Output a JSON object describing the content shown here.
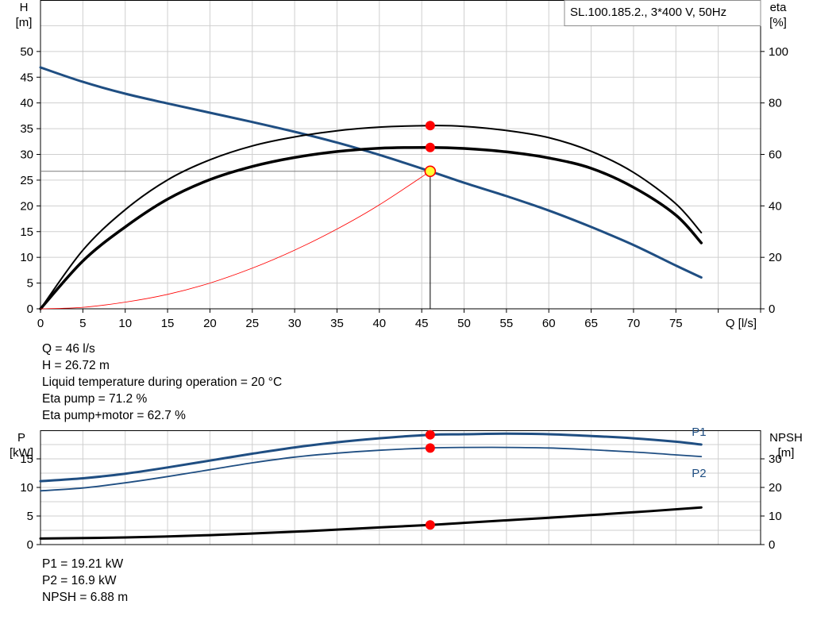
{
  "pump_label": "SL.100.185.2., 3*400 V, 50Hz",
  "chart_data": [
    {
      "type": "line",
      "title": "",
      "xlabel": "Q [l/s]",
      "ylabel": "H\n[m]",
      "y2label": "eta\n[%]",
      "xlim": [
        0,
        85
      ],
      "ylim": [
        0,
        60
      ],
      "y2lim": [
        0,
        120
      ],
      "x_ticks": [
        0,
        5,
        10,
        15,
        20,
        25,
        30,
        35,
        40,
        45,
        50,
        55,
        60,
        65,
        70,
        75
      ],
      "y_ticks": [
        0,
        5,
        10,
        15,
        20,
        25,
        30,
        35,
        40,
        45,
        50
      ],
      "y2_ticks": [
        0,
        20,
        40,
        60,
        80,
        100
      ],
      "grid": true,
      "series": [
        {
          "key": "head",
          "axis": "left",
          "color": "#1f4e82",
          "width": 3,
          "x": [
            0,
            5,
            10,
            15,
            20,
            25,
            30,
            35,
            40,
            46,
            50,
            55,
            60,
            65,
            70,
            75,
            78
          ],
          "y": [
            46.9,
            44.1,
            41.8,
            39.9,
            38.1,
            36.3,
            34.4,
            32.3,
            29.9,
            26.72,
            24.5,
            21.9,
            19.1,
            15.9,
            12.4,
            8.4,
            6.1
          ]
        },
        {
          "key": "eta_pump",
          "axis": "right",
          "color": "#000000",
          "width": 2,
          "x": [
            0,
            5,
            10,
            15,
            20,
            25,
            30,
            35,
            40,
            46,
            50,
            55,
            60,
            65,
            70,
            75,
            78
          ],
          "y": [
            0,
            22.8,
            38.5,
            50.1,
            57.9,
            63.3,
            66.8,
            69.2,
            70.6,
            71.2,
            70.9,
            69.3,
            66.5,
            61.2,
            53.0,
            40.8,
            29.6
          ]
        },
        {
          "key": "eta_total",
          "axis": "right",
          "color": "#000000",
          "width": 3.5,
          "x": [
            0,
            5,
            10,
            15,
            20,
            25,
            30,
            35,
            40,
            46,
            50,
            55,
            60,
            65,
            70,
            75,
            78
          ],
          "y": [
            0,
            18.6,
            31.8,
            42.6,
            50.2,
            55.3,
            58.8,
            61.1,
            62.4,
            62.7,
            62.3,
            61.0,
            58.6,
            54.6,
            47.2,
            36.4,
            25.6
          ]
        },
        {
          "key": "system",
          "axis": "left",
          "color": "#ff0000",
          "width": 0.8,
          "x": [
            0,
            5,
            10,
            15,
            20,
            25,
            30,
            35,
            40,
            46
          ],
          "y": [
            0,
            0.3,
            1.3,
            2.8,
            5.0,
            7.9,
            11.4,
            15.5,
            20.2,
            26.72
          ]
        }
      ],
      "hline": {
        "axis": "left",
        "y": 26.72
      },
      "vline": {
        "x": 46
      },
      "markers": [
        {
          "x": 46,
          "y": 26.72,
          "axis": "left",
          "style": "duty"
        },
        {
          "x": 46,
          "y": 71.2,
          "axis": "right",
          "style": "dot"
        },
        {
          "x": 46,
          "y": 62.7,
          "axis": "right",
          "style": "dot"
        }
      ]
    },
    {
      "type": "line",
      "title": "",
      "xlabel": "",
      "ylabel": "P\n[kW]",
      "y2label": "NPSH\n[m]",
      "xlim": [
        0,
        85
      ],
      "ylim": [
        0,
        20
      ],
      "y2lim": [
        0,
        40
      ],
      "y_ticks": [
        0,
        5,
        10,
        15
      ],
      "y2_ticks": [
        0,
        10,
        20,
        30
      ],
      "grid": true,
      "series": [
        {
          "key": "p1",
          "name": "P1",
          "axis": "left",
          "color": "#1f4e82",
          "width": 3,
          "x": [
            0,
            5,
            10,
            15,
            20,
            25,
            30,
            35,
            40,
            46,
            50,
            55,
            60,
            65,
            70,
            75,
            78
          ],
          "y": [
            11.1,
            11.6,
            12.4,
            13.5,
            14.7,
            15.9,
            17.0,
            17.9,
            18.6,
            19.21,
            19.3,
            19.4,
            19.3,
            19.0,
            18.6,
            18.0,
            17.5
          ]
        },
        {
          "key": "p2",
          "name": "P2",
          "axis": "left",
          "color": "#1f4e82",
          "width": 1.8,
          "x": [
            0,
            5,
            10,
            15,
            20,
            25,
            30,
            35,
            40,
            46,
            50,
            55,
            60,
            65,
            70,
            75,
            78
          ],
          "y": [
            9.4,
            9.9,
            10.8,
            11.9,
            13.1,
            14.3,
            15.3,
            16.0,
            16.5,
            16.9,
            17.0,
            17.0,
            16.9,
            16.6,
            16.2,
            15.7,
            15.4
          ]
        },
        {
          "key": "npsh",
          "axis": "right",
          "color": "#000000",
          "width": 3,
          "x": [
            0,
            10,
            20,
            30,
            40,
            46,
            50,
            60,
            70,
            78
          ],
          "y": [
            2.1,
            2.5,
            3.3,
            4.5,
            6.0,
            6.88,
            7.6,
            9.4,
            11.3,
            13.0
          ]
        }
      ],
      "markers": [
        {
          "x": 46,
          "y": 19.21,
          "axis": "left",
          "style": "dot"
        },
        {
          "x": 46,
          "y": 16.9,
          "axis": "left",
          "style": "dot"
        },
        {
          "x": 46,
          "y": 6.88,
          "axis": "right",
          "style": "dot"
        }
      ]
    }
  ],
  "info_top": [
    "Q = 46 l/s",
    "H = 26.72 m",
    "Liquid temperature during operation = 20 °C",
    "Eta pump = 71.2 %",
    "Eta pump+motor = 62.7 %"
  ],
  "info_bottom": [
    "P1 = 19.21 kW",
    "P2 = 16.9 kW",
    "NPSH = 6.88 m"
  ]
}
